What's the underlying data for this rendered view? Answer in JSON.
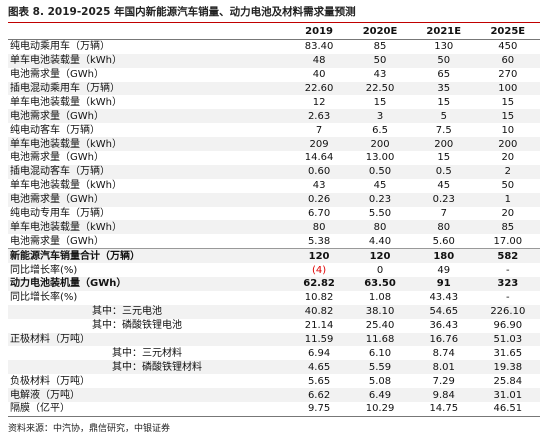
{
  "title": "图表 8. 2019-2025 年国内新能源汽车销量、动力电池及材料需求量预测",
  "table": {
    "header": [
      "",
      "2019",
      "2020E",
      "2021E",
      "2025E"
    ],
    "rows": [
      [
        "纯电动乘用车（万辆）",
        "83.40",
        "85",
        "130",
        "450"
      ],
      [
        "单车电池装载量（kWh）",
        "48",
        "50",
        "50",
        "60"
      ],
      [
        "电池需求量（GWh）",
        "40",
        "43",
        "65",
        "270"
      ],
      [
        "插电混动乘用车（万辆）",
        "22.60",
        "22.50",
        "35",
        "100"
      ],
      [
        "单车电池装载量（kWh）",
        "12",
        "15",
        "15",
        "15"
      ],
      [
        "电池需求量（GWh）",
        "2.63",
        "3",
        "5",
        "15"
      ],
      [
        "纯电动客车（万辆）",
        "7",
        "6.5",
        "7.5",
        "10"
      ],
      [
        "单车电池装载量（kWh）",
        "209",
        "200",
        "200",
        "200"
      ],
      [
        "电池需求量（GWh）",
        "14.64",
        "13.00",
        "15",
        "20"
      ],
      [
        "插电混动客车（万辆）",
        "0.60",
        "0.50",
        "0.5",
        "2"
      ],
      [
        "单车电池装载量（kWh）",
        "43",
        "45",
        "45",
        "50"
      ],
      [
        "电池需求量（GWh）",
        "0.26",
        "0.23",
        "0.23",
        "1"
      ],
      [
        "纯电动专用车（万辆）",
        "6.70",
        "5.50",
        "7",
        "20"
      ],
      [
        "单车电池装载量（kWh）",
        "80",
        "80",
        "80",
        "85"
      ],
      [
        "电池需求量（GWh）",
        "5.38",
        "4.40",
        "5.60",
        "17.00"
      ],
      [
        "新能源汽车销量合计（万辆）",
        "120",
        "120",
        "180",
        "582"
      ],
      [
        "同比增长率(%)",
        "(4)",
        "0",
        "49",
        "-"
      ],
      [
        "动力电池装机量（GWh）",
        "62.82",
        "63.50",
        "91",
        "323"
      ],
      [
        "同比增长率(%)",
        "10.82",
        "1.08",
        "43.43",
        "-"
      ],
      [
        "其中：三元电池",
        "40.82",
        "38.10",
        "54.65",
        "226.10"
      ],
      [
        "其中：磷酸铁锂电池",
        "21.14",
        "25.40",
        "36.43",
        "96.90"
      ],
      [
        "正极材料（万吨）",
        "11.59",
        "11.68",
        "16.76",
        "51.03"
      ],
      [
        "其中：三元材料",
        "6.94",
        "6.10",
        "8.74",
        "31.65"
      ],
      [
        "其中：磷酸铁锂材料",
        "4.65",
        "5.59",
        "8.01",
        "19.38"
      ],
      [
        "负极材料（万吨）",
        "5.65",
        "5.08",
        "7.29",
        "25.84"
      ],
      [
        "电解液（万吨）",
        "6.62",
        "6.49",
        "9.84",
        "31.01"
      ],
      [
        "隔膜（亿平）",
        "9.75",
        "10.29",
        "14.75",
        "46.51"
      ]
    ]
  },
  "source": "资料来源：中汽协，鼎信研究，中银证券"
}
